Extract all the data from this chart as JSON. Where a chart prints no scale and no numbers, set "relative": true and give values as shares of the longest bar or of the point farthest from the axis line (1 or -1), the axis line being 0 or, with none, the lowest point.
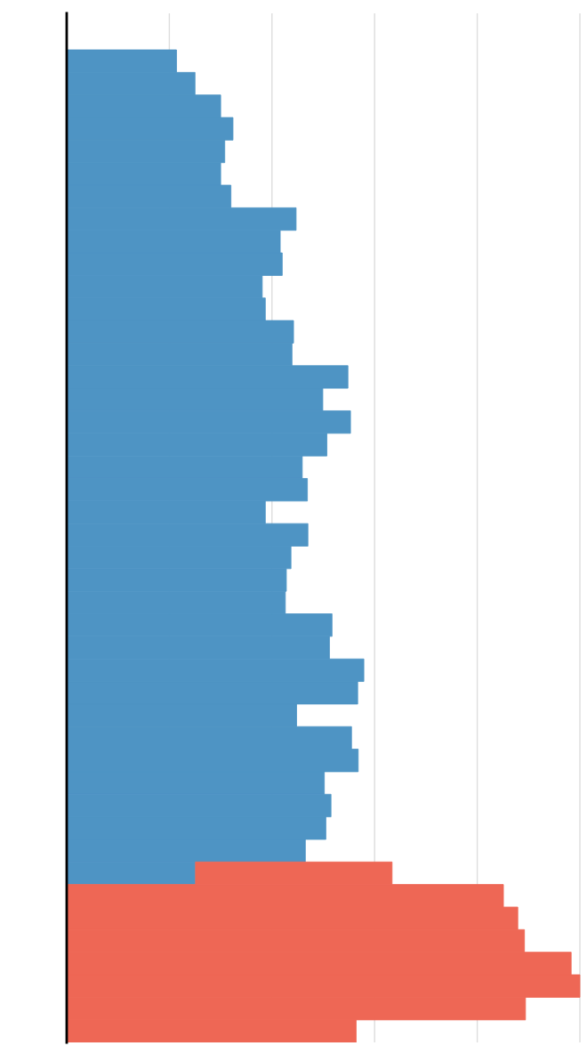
{
  "chart_data": {
    "type": "bar",
    "orientation": "horizontal",
    "relative": true,
    "stacked": true,
    "grid": "x",
    "categories": [
      null,
      null,
      null,
      null,
      null,
      null,
      null,
      null,
      null,
      null,
      null,
      null,
      null,
      null,
      null,
      null,
      null,
      null,
      null,
      null,
      null,
      null,
      null,
      null,
      null,
      null,
      null,
      null,
      null,
      null,
      null,
      null,
      null,
      null,
      null,
      null,
      null,
      null,
      null,
      null,
      null,
      null,
      null,
      null
    ],
    "series": [
      {
        "color": "#4e94c4",
        "values": [
          0.214,
          0.25,
          0.3,
          0.324,
          0.308,
          0.3,
          0.32,
          0.447,
          0.416,
          0.42,
          0.381,
          0.387,
          0.442,
          0.439,
          0.548,
          0.499,
          0.553,
          0.507,
          0.459,
          0.469,
          0.387,
          0.47,
          0.437,
          0.428,
          0.426,
          0.517,
          0.512,
          0.579,
          0.567,
          0.448,
          0.555,
          0.568,
          0.502,
          0.515,
          0.505,
          0.465,
          0.251,
          null,
          null,
          null,
          null,
          null,
          null,
          null
        ]
      },
      {
        "color": "#ee6755",
        "values": [
          null,
          null,
          null,
          null,
          null,
          null,
          null,
          null,
          null,
          null,
          null,
          null,
          null,
          null,
          null,
          null,
          null,
          null,
          null,
          null,
          null,
          null,
          null,
          null,
          null,
          null,
          null,
          null,
          null,
          null,
          null,
          null,
          null,
          null,
          null,
          null,
          0.383,
          0.851,
          0.879,
          0.892,
          0.983,
          1.0,
          0.894,
          0.564
        ]
      }
    ]
  }
}
